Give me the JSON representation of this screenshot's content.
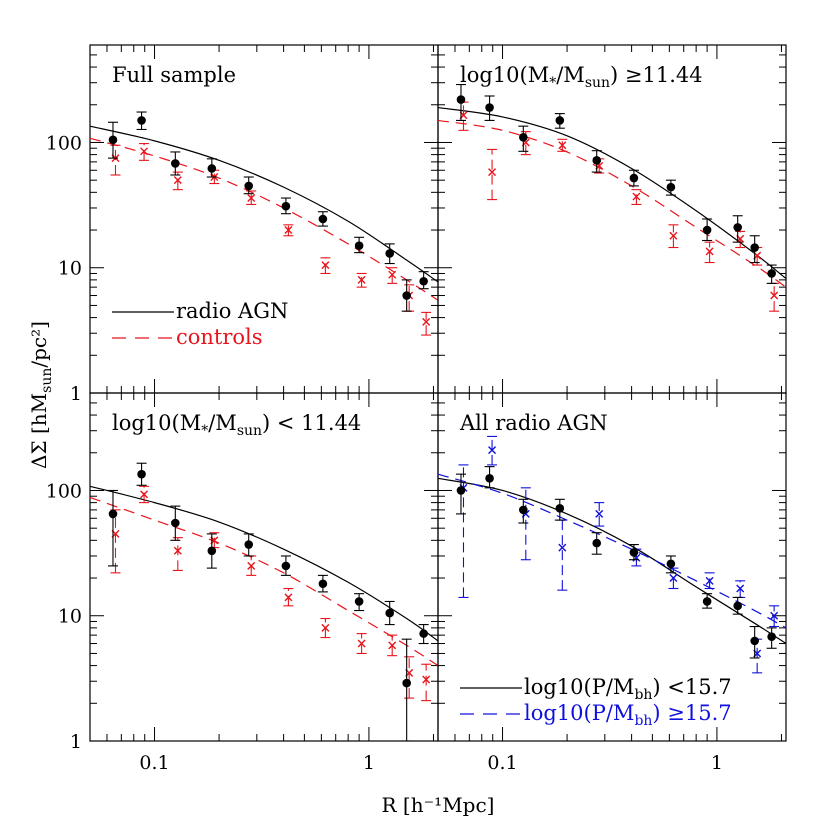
{
  "figure": {
    "xlabel": "R [h⁻¹Mpc]",
    "ylabel": "ΔΣ [hM_sun/pc²]",
    "x_ticklabels": [
      "0.1",
      "1"
    ],
    "y_ticklabels": [
      "1",
      "10",
      "100"
    ]
  },
  "chart_data": [
    {
      "type": "scatter",
      "title": "Full sample",
      "xscale": "log",
      "yscale": "log",
      "xlim": [
        0.05,
        2.1
      ],
      "ylim": [
        1,
        600
      ],
      "legend": [
        {
          "label": "radio AGN",
          "style": "solid",
          "color": "#000000"
        },
        {
          "label": "controls",
          "style": "dashed",
          "color": "#e8141b"
        }
      ],
      "series": [
        {
          "name": "radio AGN",
          "marker": "dot",
          "color": "#000000",
          "x": [
            0.064,
            0.087,
            0.125,
            0.185,
            0.275,
            0.41,
            0.61,
            0.9,
            1.25,
            1.5,
            1.8
          ],
          "y": [
            105,
            150,
            68,
            62,
            45,
            31,
            24.5,
            15,
            13,
            6,
            7.8
          ],
          "yerr_low": [
            75,
            127,
            55,
            53,
            39,
            27,
            21.5,
            13.2,
            10.8,
            4.5,
            6.8
          ],
          "yerr_high": [
            145,
            175,
            84,
            74,
            53,
            36,
            28,
            17.5,
            15.5,
            8,
            9.3
          ]
        },
        {
          "name": "controls",
          "marker": "cross",
          "color": "#e8141b",
          "x": [
            0.064,
            0.087,
            0.125,
            0.185,
            0.275,
            0.41,
            0.61,
            0.9,
            1.25,
            1.5,
            1.8
          ],
          "y": [
            75,
            85,
            50,
            53,
            36,
            20,
            10.5,
            8,
            8.8,
            6,
            3.7
          ],
          "yerr_low": [
            55,
            72,
            42,
            47,
            32,
            18,
            9,
            7,
            7.5,
            4.5,
            2.9
          ],
          "yerr_high": [
            95,
            98,
            58,
            60,
            41,
            22,
            12,
            9,
            10,
            7.3,
            4.4
          ]
        }
      ],
      "fit_lines": [
        {
          "name": "radio AGN",
          "style": "solid",
          "color": "#000000",
          "x": [
            0.05,
            0.1,
            0.2,
            0.4,
            0.8,
            1.5,
            2.1
          ],
          "y": [
            135,
            103,
            72,
            44,
            23.5,
            11.5,
            7.7
          ]
        },
        {
          "name": "controls",
          "style": "dashed",
          "color": "#e8141b",
          "x": [
            0.05,
            0.1,
            0.2,
            0.4,
            0.8,
            1.5,
            2.1
          ],
          "y": [
            108,
            78,
            52,
            30,
            15.5,
            8,
            5.5
          ]
        }
      ]
    },
    {
      "type": "scatter",
      "title": "log10(M*/Msun) ≥11.44",
      "title_parts": {
        "a": "log10(M",
        "star": "*",
        "b": "/M",
        "sub": "sun",
        "c": ") ≥11.44"
      },
      "xscale": "log",
      "yscale": "log",
      "xlim": [
        0.05,
        2.1
      ],
      "ylim": [
        1,
        600
      ],
      "series": [
        {
          "name": "radio AGN",
          "marker": "dot",
          "color": "#000000",
          "x": [
            0.064,
            0.087,
            0.125,
            0.185,
            0.275,
            0.41,
            0.61,
            0.9,
            1.25,
            1.5,
            1.8
          ],
          "y": [
            220,
            190,
            110,
            150,
            72,
            52,
            44,
            20,
            21,
            14.5,
            9
          ],
          "yerr_low": [
            150,
            150,
            85,
            130,
            58,
            45,
            38,
            16.5,
            16,
            11,
            7.5
          ],
          "yerr_high": [
            290,
            235,
            135,
            170,
            86,
            60,
            50,
            24.5,
            26,
            18,
            10.5
          ]
        },
        {
          "name": "controls",
          "marker": "cross",
          "color": "#e8141b",
          "x": [
            0.064,
            0.087,
            0.125,
            0.185,
            0.275,
            0.41,
            0.61,
            0.9,
            1.25,
            1.5,
            1.8
          ],
          "y": [
            165,
            58,
            100,
            95,
            65,
            37,
            18,
            13.5,
            17,
            12.5,
            6
          ],
          "yerr_low": [
            125,
            35,
            80,
            85,
            57,
            32,
            14.5,
            11,
            14.5,
            10.5,
            4.5
          ],
          "yerr_high": [
            210,
            88,
            122,
            106,
            74,
            42,
            22,
            16,
            19.5,
            14.5,
            7.5
          ]
        }
      ],
      "fit_lines": [
        {
          "name": "radio AGN",
          "style": "solid",
          "color": "#000000",
          "x": [
            0.05,
            0.1,
            0.2,
            0.4,
            0.8,
            1.5,
            2.1
          ],
          "y": [
            190,
            160,
            113,
            62,
            28.5,
            13,
            8.2
          ]
        },
        {
          "name": "controls",
          "style": "dashed",
          "color": "#e8141b",
          "x": [
            0.05,
            0.1,
            0.2,
            0.4,
            0.8,
            1.5,
            2.1
          ],
          "y": [
            150,
            125,
            84,
            45,
            21,
            10.5,
            7
          ]
        }
      ]
    },
    {
      "type": "scatter",
      "title": "log10(M*/Msun) < 11.44",
      "title_parts": {
        "a": "log10(M",
        "star": "*",
        "b": "/M",
        "sub": "sun",
        "c": ") < 11.44"
      },
      "xscale": "log",
      "yscale": "log",
      "xlim": [
        0.05,
        2.1
      ],
      "ylim": [
        1,
        600
      ],
      "series": [
        {
          "name": "radio AGN",
          "marker": "dot",
          "color": "#000000",
          "x": [
            0.064,
            0.087,
            0.125,
            0.185,
            0.275,
            0.41,
            0.61,
            0.9,
            1.25,
            1.5,
            1.8
          ],
          "y": [
            65,
            135,
            55,
            33,
            37,
            25,
            18,
            13,
            10.5,
            2.9,
            7.2
          ],
          "yerr_low": [
            25,
            110,
            40,
            24,
            30,
            21,
            15.5,
            11,
            8.5,
            1,
            6
          ],
          "yerr_high": [
            100,
            165,
            75,
            45,
            45,
            30,
            21,
            15,
            13,
            6.5,
            8.5
          ]
        },
        {
          "name": "controls",
          "marker": "cross",
          "color": "#e8141b",
          "x": [
            0.064,
            0.087,
            0.125,
            0.185,
            0.275,
            0.41,
            0.61,
            0.9,
            1.25,
            1.5,
            1.8
          ],
          "y": [
            45,
            93,
            33,
            40,
            25,
            14,
            8,
            6,
            5.8,
            3.5,
            3.1
          ],
          "yerr_low": [
            22,
            80,
            23,
            35,
            21,
            12,
            6.7,
            5,
            4.8,
            2.2,
            2.1
          ],
          "yerr_high": [
            70,
            108,
            42,
            46,
            30,
            16.5,
            9.5,
            7.2,
            7,
            4.7,
            4.1
          ]
        }
      ],
      "fit_lines": [
        {
          "name": "radio AGN",
          "style": "solid",
          "color": "#000000",
          "x": [
            0.05,
            0.1,
            0.2,
            0.4,
            0.8,
            1.5,
            2.1
          ],
          "y": [
            108,
            80,
            56,
            34,
            18.5,
            9.5,
            6.3
          ]
        },
        {
          "name": "controls",
          "style": "dashed",
          "color": "#e8141b",
          "x": [
            0.05,
            0.1,
            0.2,
            0.4,
            0.8,
            1.5,
            2.1
          ],
          "y": [
            88,
            58,
            38,
            22,
            11,
            5.8,
            4
          ]
        }
      ]
    },
    {
      "type": "scatter",
      "title": "All radio AGN",
      "xscale": "log",
      "yscale": "log",
      "xlim": [
        0.05,
        2.1
      ],
      "ylim": [
        1,
        600
      ],
      "legend": [
        {
          "label": "log10(P/Mbh) <15.7",
          "parts": {
            "a": "log10(P/M",
            "sub": "bh",
            "c": ") <15.7"
          },
          "style": "solid",
          "color": "#000000"
        },
        {
          "label": "log10(P/Mbh) ≥15.7",
          "parts": {
            "a": "log10(P/M",
            "sub": "bh",
            "c": ") ≥15.7"
          },
          "style": "dashed",
          "color": "#1010dd"
        }
      ],
      "series": [
        {
          "name": "log10(P/Mbh) <15.7",
          "marker": "dot",
          "color": "#000000",
          "x": [
            0.064,
            0.087,
            0.125,
            0.185,
            0.275,
            0.41,
            0.61,
            0.9,
            1.25,
            1.5,
            1.8
          ],
          "y": [
            100,
            125,
            70,
            72,
            38,
            32,
            26,
            13,
            12,
            6.3,
            6.8
          ],
          "yerr_low": [
            65,
            105,
            55,
            58,
            31,
            28,
            22,
            11.5,
            10.3,
            4.6,
            5.5
          ],
          "yerr_high": [
            135,
            155,
            85,
            85,
            46,
            37,
            30,
            15,
            14,
            8.2,
            8
          ]
        },
        {
          "name": "log10(P/Mbh) ≥15.7",
          "marker": "cross",
          "color": "#1010dd",
          "x": [
            0.064,
            0.087,
            0.125,
            0.185,
            0.275,
            0.41,
            0.61,
            0.9,
            1.25,
            1.5,
            1.8
          ],
          "y": [
            105,
            210,
            65,
            35,
            65,
            29,
            20,
            19,
            16.5,
            5,
            10
          ],
          "yerr_low": [
            14,
            160,
            28,
            16,
            52,
            25,
            16.5,
            16.5,
            14,
            3.5,
            8.2
          ],
          "yerr_high": [
            160,
            270,
            105,
            58,
            80,
            34,
            24,
            22,
            19,
            6.5,
            12
          ]
        }
      ],
      "fit_lines": [
        {
          "name": "log10(P/Mbh) <15.7",
          "style": "solid",
          "color": "#000000",
          "x": [
            0.05,
            0.1,
            0.2,
            0.4,
            0.8,
            1.5,
            2.1
          ],
          "y": [
            125,
            100,
            65,
            36,
            17,
            8.7,
            6
          ]
        },
        {
          "name": "log10(P/Mbh) ≥15.7",
          "style": "dashed",
          "color": "#1010dd",
          "x": [
            0.05,
            0.1,
            0.2,
            0.4,
            0.8,
            1.5,
            2.1
          ],
          "y": [
            135,
            95,
            58,
            34,
            19,
            11,
            8
          ]
        }
      ]
    }
  ]
}
